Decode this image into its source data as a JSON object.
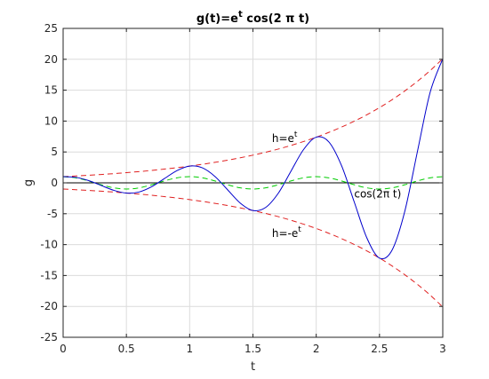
{
  "chart_data": {
    "type": "line",
    "title": {
      "main": "g(t)=e",
      "sup": "t",
      "rest": " cos(2 π t)"
    },
    "xlabel": "t",
    "ylabel": "g",
    "xlim": [
      0,
      3
    ],
    "ylim": [
      -25,
      25
    ],
    "xticks": [
      0,
      0.5,
      1,
      1.5,
      2,
      2.5,
      3
    ],
    "xtick_labels": [
      "0",
      "0.5",
      "1",
      "1.5",
      "2",
      "2.5",
      "3"
    ],
    "yticks": [
      -25,
      -20,
      -15,
      -10,
      -5,
      0,
      5,
      10,
      15,
      20,
      25
    ],
    "ytick_labels": [
      "-25",
      "-20",
      "-15",
      "-10",
      "-5",
      "0",
      "5",
      "10",
      "15",
      "20",
      "25"
    ],
    "grid": true,
    "x": [
      0,
      0.1,
      0.2,
      0.3,
      0.4,
      0.5,
      0.6,
      0.7,
      0.8,
      0.9,
      1.0,
      1.1,
      1.2,
      1.3,
      1.4,
      1.5,
      1.6,
      1.7,
      1.8,
      1.9,
      2.0,
      2.1,
      2.2,
      2.3,
      2.4,
      2.5,
      2.6,
      2.7,
      2.8,
      2.9,
      3.0
    ],
    "series": [
      {
        "key": "g",
        "color": "#0000cc",
        "dash": "solid",
        "values": [
          1.0,
          0.89,
          0.38,
          -0.42,
          -1.21,
          -1.65,
          -1.48,
          -0.62,
          0.69,
          1.99,
          2.72,
          2.43,
          1.03,
          -1.13,
          -3.28,
          -4.48,
          -3.99,
          -1.69,
          1.87,
          5.39,
          7.39,
          6.62,
          2.79,
          -3.07,
          -8.91,
          -12.18,
          -10.86,
          -4.59,
          5.09,
          14.64,
          20.09
        ]
      },
      {
        "key": "pos-envelope",
        "color": "#e02020",
        "dash": "dashed",
        "values": [
          1.0,
          1.11,
          1.22,
          1.35,
          1.49,
          1.65,
          1.82,
          2.01,
          2.23,
          2.46,
          2.72,
          3.0,
          3.32,
          3.67,
          4.06,
          4.48,
          4.95,
          5.47,
          6.05,
          6.69,
          7.39,
          8.17,
          9.03,
          9.97,
          11.02,
          12.18,
          13.46,
          14.88,
          16.44,
          18.17,
          20.09
        ]
      },
      {
        "key": "neg-envelope",
        "color": "#e02020",
        "dash": "dashed",
        "values": [
          -1.0,
          -1.11,
          -1.22,
          -1.35,
          -1.49,
          -1.65,
          -1.82,
          -2.01,
          -2.23,
          -2.46,
          -2.72,
          -3.0,
          -3.32,
          -3.67,
          -4.06,
          -4.48,
          -4.95,
          -5.47,
          -6.05,
          -6.69,
          -7.39,
          -8.17,
          -9.03,
          -9.97,
          -11.02,
          -12.18,
          -13.46,
          -14.88,
          -16.44,
          -18.17,
          -20.09
        ]
      },
      {
        "key": "cos",
        "color": "#00cc00",
        "dash": "dashed",
        "values": [
          1.0,
          0.81,
          0.31,
          -0.31,
          -0.81,
          -1.0,
          -0.81,
          -0.31,
          0.31,
          0.81,
          1.0,
          0.81,
          0.31,
          -0.31,
          -0.81,
          -1.0,
          -0.81,
          -0.31,
          0.31,
          0.81,
          1.0,
          0.81,
          0.31,
          -0.31,
          -0.81,
          -1.0,
          -0.81,
          -0.31,
          0.31,
          0.81,
          1.0
        ]
      }
    ],
    "zero_line": {
      "y": 0,
      "color": "#000000"
    },
    "annotations": [
      {
        "key": "h-pos",
        "text": "h=e",
        "sup": "t",
        "x": 1.65,
        "y": 6.6
      },
      {
        "key": "h-neg",
        "text": "h=-e",
        "sup": "t",
        "x": 1.65,
        "y": -8.8
      },
      {
        "key": "cos-label",
        "text": "cos(2π t)",
        "sup": "",
        "x": 2.3,
        "y": -2.4
      }
    ]
  }
}
